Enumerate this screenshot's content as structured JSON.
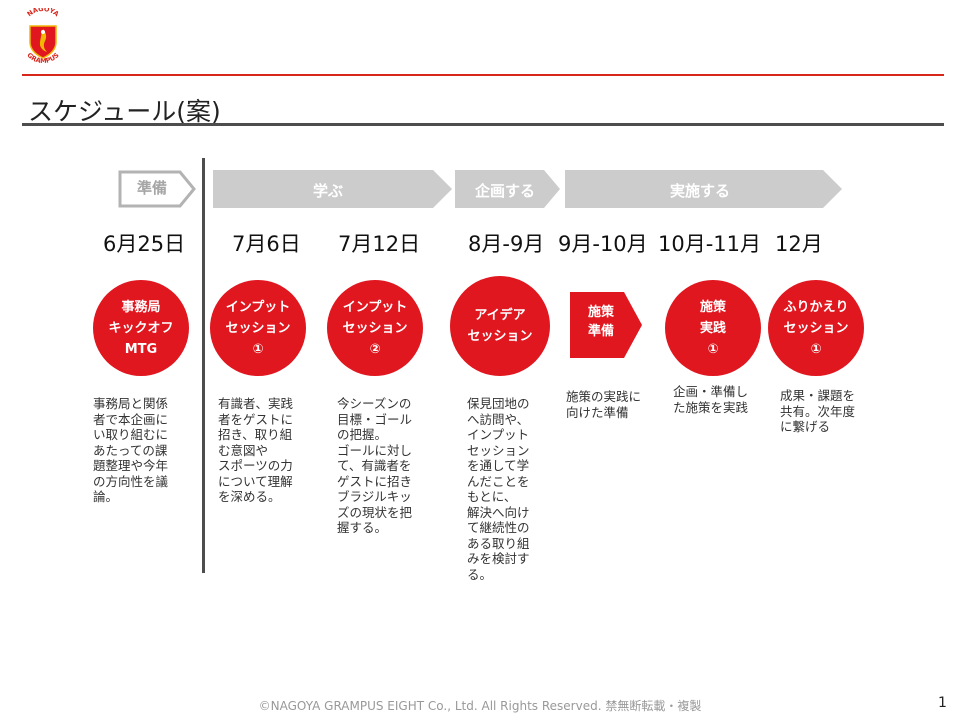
{
  "logo": {
    "top_text": "NAGOYA",
    "bottom_text": "GRAMPUS",
    "color": "#e0171f",
    "accent": "#f2b705"
  },
  "title": "スケジュール(案)",
  "phases": {
    "prep": "準備",
    "learn": "学ぶ",
    "plan": "企画する",
    "implement": "実施する"
  },
  "dates": [
    "6月25日",
    "7月6日",
    "7月12日",
    "8月-9月",
    "9月-10月",
    "10月-11月",
    "12月"
  ],
  "events": [
    {
      "lines": [
        "事務局",
        "キックオフ",
        "MTG"
      ]
    },
    {
      "lines": [
        "インプット",
        "セッション",
        "①"
      ]
    },
    {
      "lines": [
        "インプット",
        "セッション",
        "②"
      ]
    },
    {
      "lines": [
        "アイデア",
        "セッション"
      ]
    },
    {
      "lines": [
        "施策",
        "準備"
      ]
    },
    {
      "lines": [
        "施策",
        "実践",
        "①"
      ]
    },
    {
      "lines": [
        "ふりかえり",
        "セッション",
        "①"
      ]
    }
  ],
  "descriptions": [
    [
      "事務局と関係",
      "者で本企画に",
      "い取り組むに",
      "あたっての課",
      "題整理や今年",
      "の方向性を議",
      "論。"
    ],
    [
      "有識者、実践",
      "者をゲストに",
      "招き、取り組",
      "む意図や",
      "スポーツの力",
      "について理解",
      "を深める。"
    ],
    [
      "今シーズンの",
      "目標・ゴール",
      "の把握。",
      "ゴールに対し",
      "て、有識者を",
      "ゲストに招き",
      "ブラジルキッ",
      "ズの現状を把",
      "握する。"
    ],
    [
      "保見団地の",
      "へ訪問や、",
      "インプット",
      "セッション",
      "を通して学",
      "んだことを",
      "もとに、",
      "解決へ向け",
      "て継続性の",
      "ある取り組",
      "みを検討す",
      "る。"
    ],
    [
      "施策の実践に",
      "向けた準備"
    ],
    [
      "企画・準備し",
      "た施策を実践"
    ],
    [
      "成果・課題を",
      "共有。次年度",
      "に繋げる"
    ]
  ],
  "footer": "©NAGOYA GRAMPUS EIGHT Co., Ltd. All Rights Reserved. 禁無断転載・複製",
  "page_number": "1",
  "colors": {
    "accent_red": "#e0171f",
    "arrow_gray": "#cccccc",
    "prep_gray": "#b3b3b3"
  }
}
